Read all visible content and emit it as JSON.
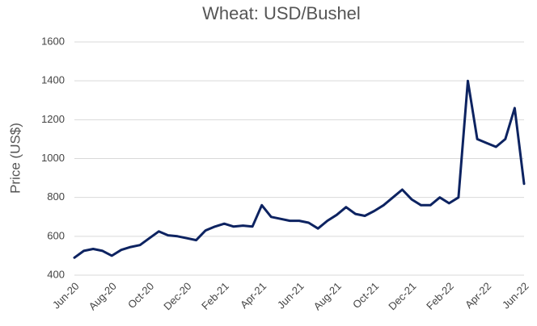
{
  "chart_data": {
    "type": "line",
    "title": "Wheat: USD/Bushel",
    "y_label": "Price (US$)",
    "categories": [
      "Jun-20",
      null,
      null,
      null,
      "Aug-20",
      null,
      null,
      null,
      "Oct-20",
      null,
      null,
      null,
      "Dec-20",
      null,
      null,
      null,
      "Feb-21",
      null,
      null,
      null,
      "Apr-21",
      null,
      null,
      null,
      "Jun-21",
      null,
      null,
      null,
      "Aug-21",
      null,
      null,
      null,
      "Oct-21",
      null,
      null,
      null,
      "Dec-21",
      null,
      null,
      null,
      "Feb-22",
      null,
      null,
      null,
      "Apr-22",
      null,
      null,
      null,
      "Jun-22"
    ],
    "values": [
      490,
      525,
      535,
      525,
      500,
      530,
      545,
      555,
      590,
      625,
      605,
      600,
      590,
      580,
      630,
      650,
      665,
      650,
      655,
      650,
      760,
      700,
      690,
      680,
      680,
      670,
      640,
      680,
      710,
      750,
      715,
      705,
      730,
      760,
      800,
      840,
      790,
      760,
      760,
      800,
      770,
      800,
      1400,
      1100,
      1080,
      1060,
      1100,
      1260,
      870
    ],
    "color": "#0d2361",
    "ylim": [
      400,
      1600
    ],
    "yticks": [
      400,
      600,
      800,
      1000,
      1200,
      1400,
      1600
    ],
    "grid": true
  }
}
